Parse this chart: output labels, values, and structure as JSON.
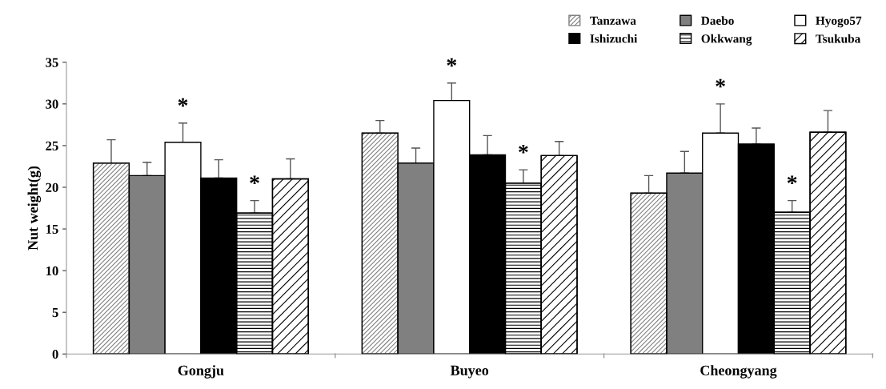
{
  "chart_data": {
    "type": "bar",
    "ylabel": "Nut weight(g)",
    "categories": [
      "Gongju",
      "Buyeo",
      "Cheongyang"
    ],
    "series": [
      {
        "name": "Tanzawa",
        "color": "#808080",
        "values": [
          22.9,
          26.5,
          19.3
        ],
        "errors": [
          [
            22.9,
            25.7
          ],
          [
            26.5,
            28.0
          ],
          [
            19.3,
            21.4
          ]
        ]
      },
      {
        "name": "Daebo",
        "color": "#808080",
        "values": [
          21.4,
          22.9,
          21.7
        ],
        "errors": [
          [
            21.4,
            23.0
          ],
          [
            22.9,
            24.7
          ],
          [
            21.7,
            24.3
          ]
        ]
      },
      {
        "name": "Hyogo57",
        "color": "#ffffff",
        "values": [
          25.4,
          30.4,
          26.5
        ],
        "value_labels": [
          "*",
          "*",
          "*"
        ],
        "errors": [
          [
            25.4,
            27.7
          ],
          [
            30.4,
            32.5
          ],
          [
            26.5,
            30.0
          ]
        ]
      },
      {
        "name": "Ishizuchi",
        "color": "#000000",
        "values": [
          21.1,
          23.9,
          25.2
        ],
        "errors": [
          [
            21.1,
            23.3
          ],
          [
            23.9,
            26.2
          ],
          [
            25.2,
            27.1
          ]
        ]
      },
      {
        "name": "Okkwang",
        "color": "#000000",
        "values": [
          16.9,
          20.5,
          17.0
        ],
        "value_labels": [
          "*",
          "*",
          "*"
        ],
        "errors": [
          [
            16.9,
            18.4
          ],
          [
            20.5,
            22.1
          ],
          [
            17.0,
            18.4
          ]
        ]
      },
      {
        "name": "Tsukuba",
        "color": "#000000",
        "values": [
          21.0,
          23.8,
          26.6
        ],
        "errors": [
          [
            21.0,
            23.4
          ],
          [
            23.8,
            25.5
          ],
          [
            26.6,
            29.2
          ]
        ]
      }
    ],
    "ylim": [
      0,
      35
    ],
    "yticks": [
      0,
      5,
      10,
      15,
      20,
      25,
      30,
      35
    ],
    "legend": "top right",
    "grid": false
  }
}
